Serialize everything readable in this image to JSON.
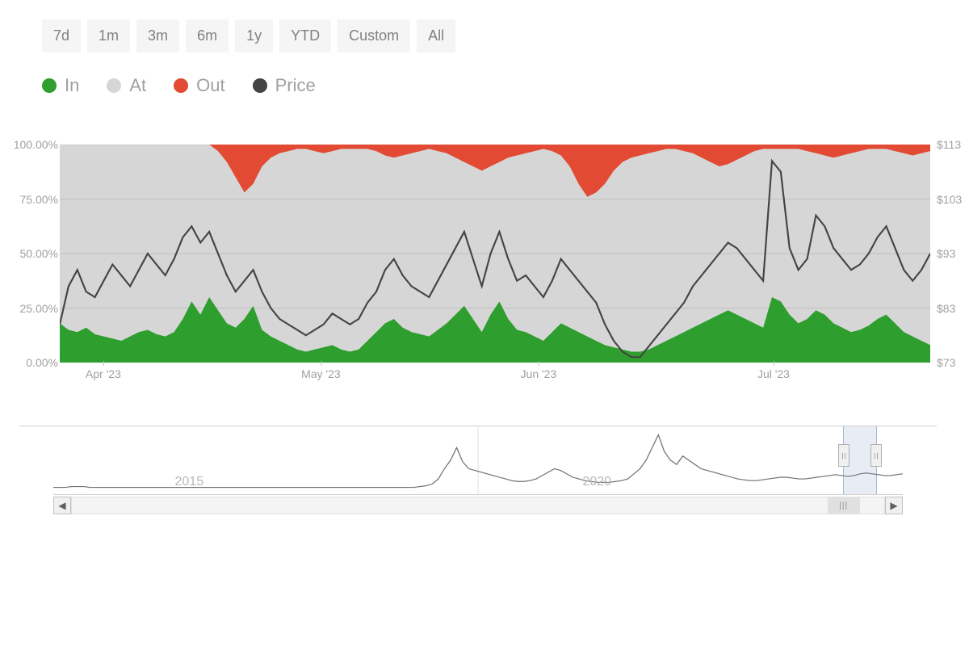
{
  "range_buttons": [
    "7d",
    "1m",
    "3m",
    "6m",
    "1y",
    "YTD",
    "Custom",
    "All"
  ],
  "legend": [
    {
      "label": "In",
      "color": "#2e9e2e"
    },
    {
      "label": "At",
      "color": "#d6d6d6"
    },
    {
      "label": "Out",
      "color": "#e24a33"
    },
    {
      "label": "Price",
      "color": "#444444"
    }
  ],
  "main_chart": {
    "type": "stacked-area+line",
    "background_color": "#ffffff",
    "plot_bg": "#d6d6d6",
    "grid_color": "#c0c0c0",
    "y_left": {
      "min": 0,
      "max": 100,
      "ticks": [
        0,
        25,
        50,
        75,
        100
      ],
      "labels": [
        "0.00%",
        "25.00%",
        "50.00%",
        "75.00%",
        "100.00%"
      ]
    },
    "y_right": {
      "min": 73,
      "max": 113,
      "ticks": [
        73,
        83,
        93,
        103,
        113
      ],
      "labels": [
        "$73",
        "$83",
        "$93",
        "$103",
        "$113"
      ]
    },
    "x_ticks": [
      {
        "pos_pct": 5,
        "label": "Apr '23"
      },
      {
        "pos_pct": 30,
        "label": "May '23"
      },
      {
        "pos_pct": 55,
        "label": "Jun '23"
      },
      {
        "pos_pct": 82,
        "label": "Jul '23"
      }
    ],
    "n_points": 100,
    "series_in_pct": [
      18,
      15,
      14,
      16,
      13,
      12,
      11,
      10,
      12,
      14,
      15,
      13,
      12,
      14,
      20,
      28,
      22,
      30,
      24,
      18,
      16,
      20,
      26,
      15,
      12,
      10,
      8,
      6,
      5,
      6,
      7,
      8,
      6,
      5,
      6,
      10,
      14,
      18,
      20,
      16,
      14,
      13,
      12,
      15,
      18,
      22,
      26,
      20,
      14,
      22,
      28,
      20,
      15,
      14,
      12,
      10,
      14,
      18,
      16,
      14,
      12,
      10,
      8,
      7,
      6,
      5,
      5,
      6,
      8,
      10,
      12,
      14,
      16,
      18,
      20,
      22,
      24,
      22,
      20,
      18,
      16,
      30,
      28,
      22,
      18,
      20,
      24,
      22,
      18,
      16,
      14,
      15,
      17,
      20,
      22,
      18,
      14,
      12,
      10,
      8
    ],
    "series_out_pct": [
      0,
      0,
      0,
      0,
      0,
      0,
      0,
      0,
      0,
      0,
      0,
      0,
      0,
      0,
      0,
      0,
      0,
      0,
      3,
      8,
      15,
      22,
      18,
      10,
      6,
      4,
      3,
      2,
      2,
      3,
      4,
      3,
      2,
      2,
      2,
      2,
      3,
      5,
      6,
      5,
      4,
      3,
      2,
      3,
      4,
      6,
      8,
      10,
      12,
      10,
      8,
      6,
      5,
      4,
      3,
      2,
      3,
      5,
      10,
      18,
      24,
      22,
      18,
      12,
      8,
      6,
      5,
      4,
      3,
      2,
      2,
      3,
      4,
      6,
      8,
      10,
      9,
      7,
      5,
      3,
      2,
      2,
      2,
      2,
      2,
      3,
      4,
      5,
      6,
      5,
      4,
      3,
      2,
      2,
      2,
      3,
      4,
      5,
      4,
      3
    ],
    "price_usd": [
      80,
      87,
      90,
      86,
      85,
      88,
      91,
      89,
      87,
      90,
      93,
      91,
      89,
      92,
      96,
      98,
      95,
      97,
      93,
      89,
      86,
      88,
      90,
      86,
      83,
      81,
      80,
      79,
      78,
      79,
      80,
      82,
      81,
      80,
      81,
      84,
      86,
      90,
      92,
      89,
      87,
      86,
      85,
      88,
      91,
      94,
      97,
      92,
      87,
      93,
      97,
      92,
      88,
      89,
      87,
      85,
      88,
      92,
      90,
      88,
      86,
      84,
      80,
      77,
      75,
      74,
      74,
      76,
      78,
      80,
      82,
      84,
      87,
      89,
      91,
      93,
      95,
      94,
      92,
      90,
      88,
      110,
      108,
      94,
      90,
      92,
      100,
      98,
      94,
      92,
      90,
      91,
      93,
      96,
      98,
      94,
      90,
      88,
      90,
      93
    ],
    "colors": {
      "in": "#2e9e2e",
      "at": "#d6d6d6",
      "out": "#e24a33",
      "price": "#444444",
      "price_width": 2
    }
  },
  "navigator": {
    "type": "line",
    "line_color": "#707070",
    "n_points": 140,
    "values": [
      8,
      8,
      8,
      9,
      9,
      9,
      8,
      8,
      8,
      8,
      8,
      8,
      8,
      8,
      8,
      8,
      8,
      8,
      8,
      8,
      8,
      8,
      8,
      8,
      8,
      8,
      8,
      8,
      8,
      8,
      8,
      8,
      8,
      8,
      8,
      8,
      8,
      8,
      8,
      8,
      8,
      8,
      8,
      8,
      8,
      8,
      8,
      8,
      8,
      8,
      8,
      8,
      8,
      8,
      8,
      8,
      8,
      8,
      8,
      8,
      9,
      10,
      12,
      18,
      30,
      40,
      55,
      38,
      30,
      28,
      26,
      24,
      22,
      20,
      18,
      16,
      15,
      15,
      16,
      18,
      22,
      26,
      30,
      28,
      24,
      20,
      18,
      16,
      15,
      14,
      14,
      14,
      15,
      16,
      18,
      24,
      30,
      40,
      55,
      70,
      50,
      40,
      35,
      45,
      40,
      35,
      30,
      28,
      26,
      24,
      22,
      20,
      18,
      17,
      16,
      16,
      17,
      18,
      19,
      20,
      20,
      19,
      18,
      18,
      19,
      20,
      21,
      22,
      23,
      22,
      21,
      22,
      24,
      25,
      24,
      23,
      22,
      22,
      23,
      24
    ],
    "y_max": 80,
    "labels": [
      {
        "pos_pct": 16,
        "label": "2015"
      },
      {
        "pos_pct": 64,
        "label": "2020"
      }
    ],
    "window": {
      "start_pct": 93,
      "end_pct": 97
    },
    "scroll_thumb": {
      "start_pct": 93,
      "width_pct": 4
    }
  }
}
